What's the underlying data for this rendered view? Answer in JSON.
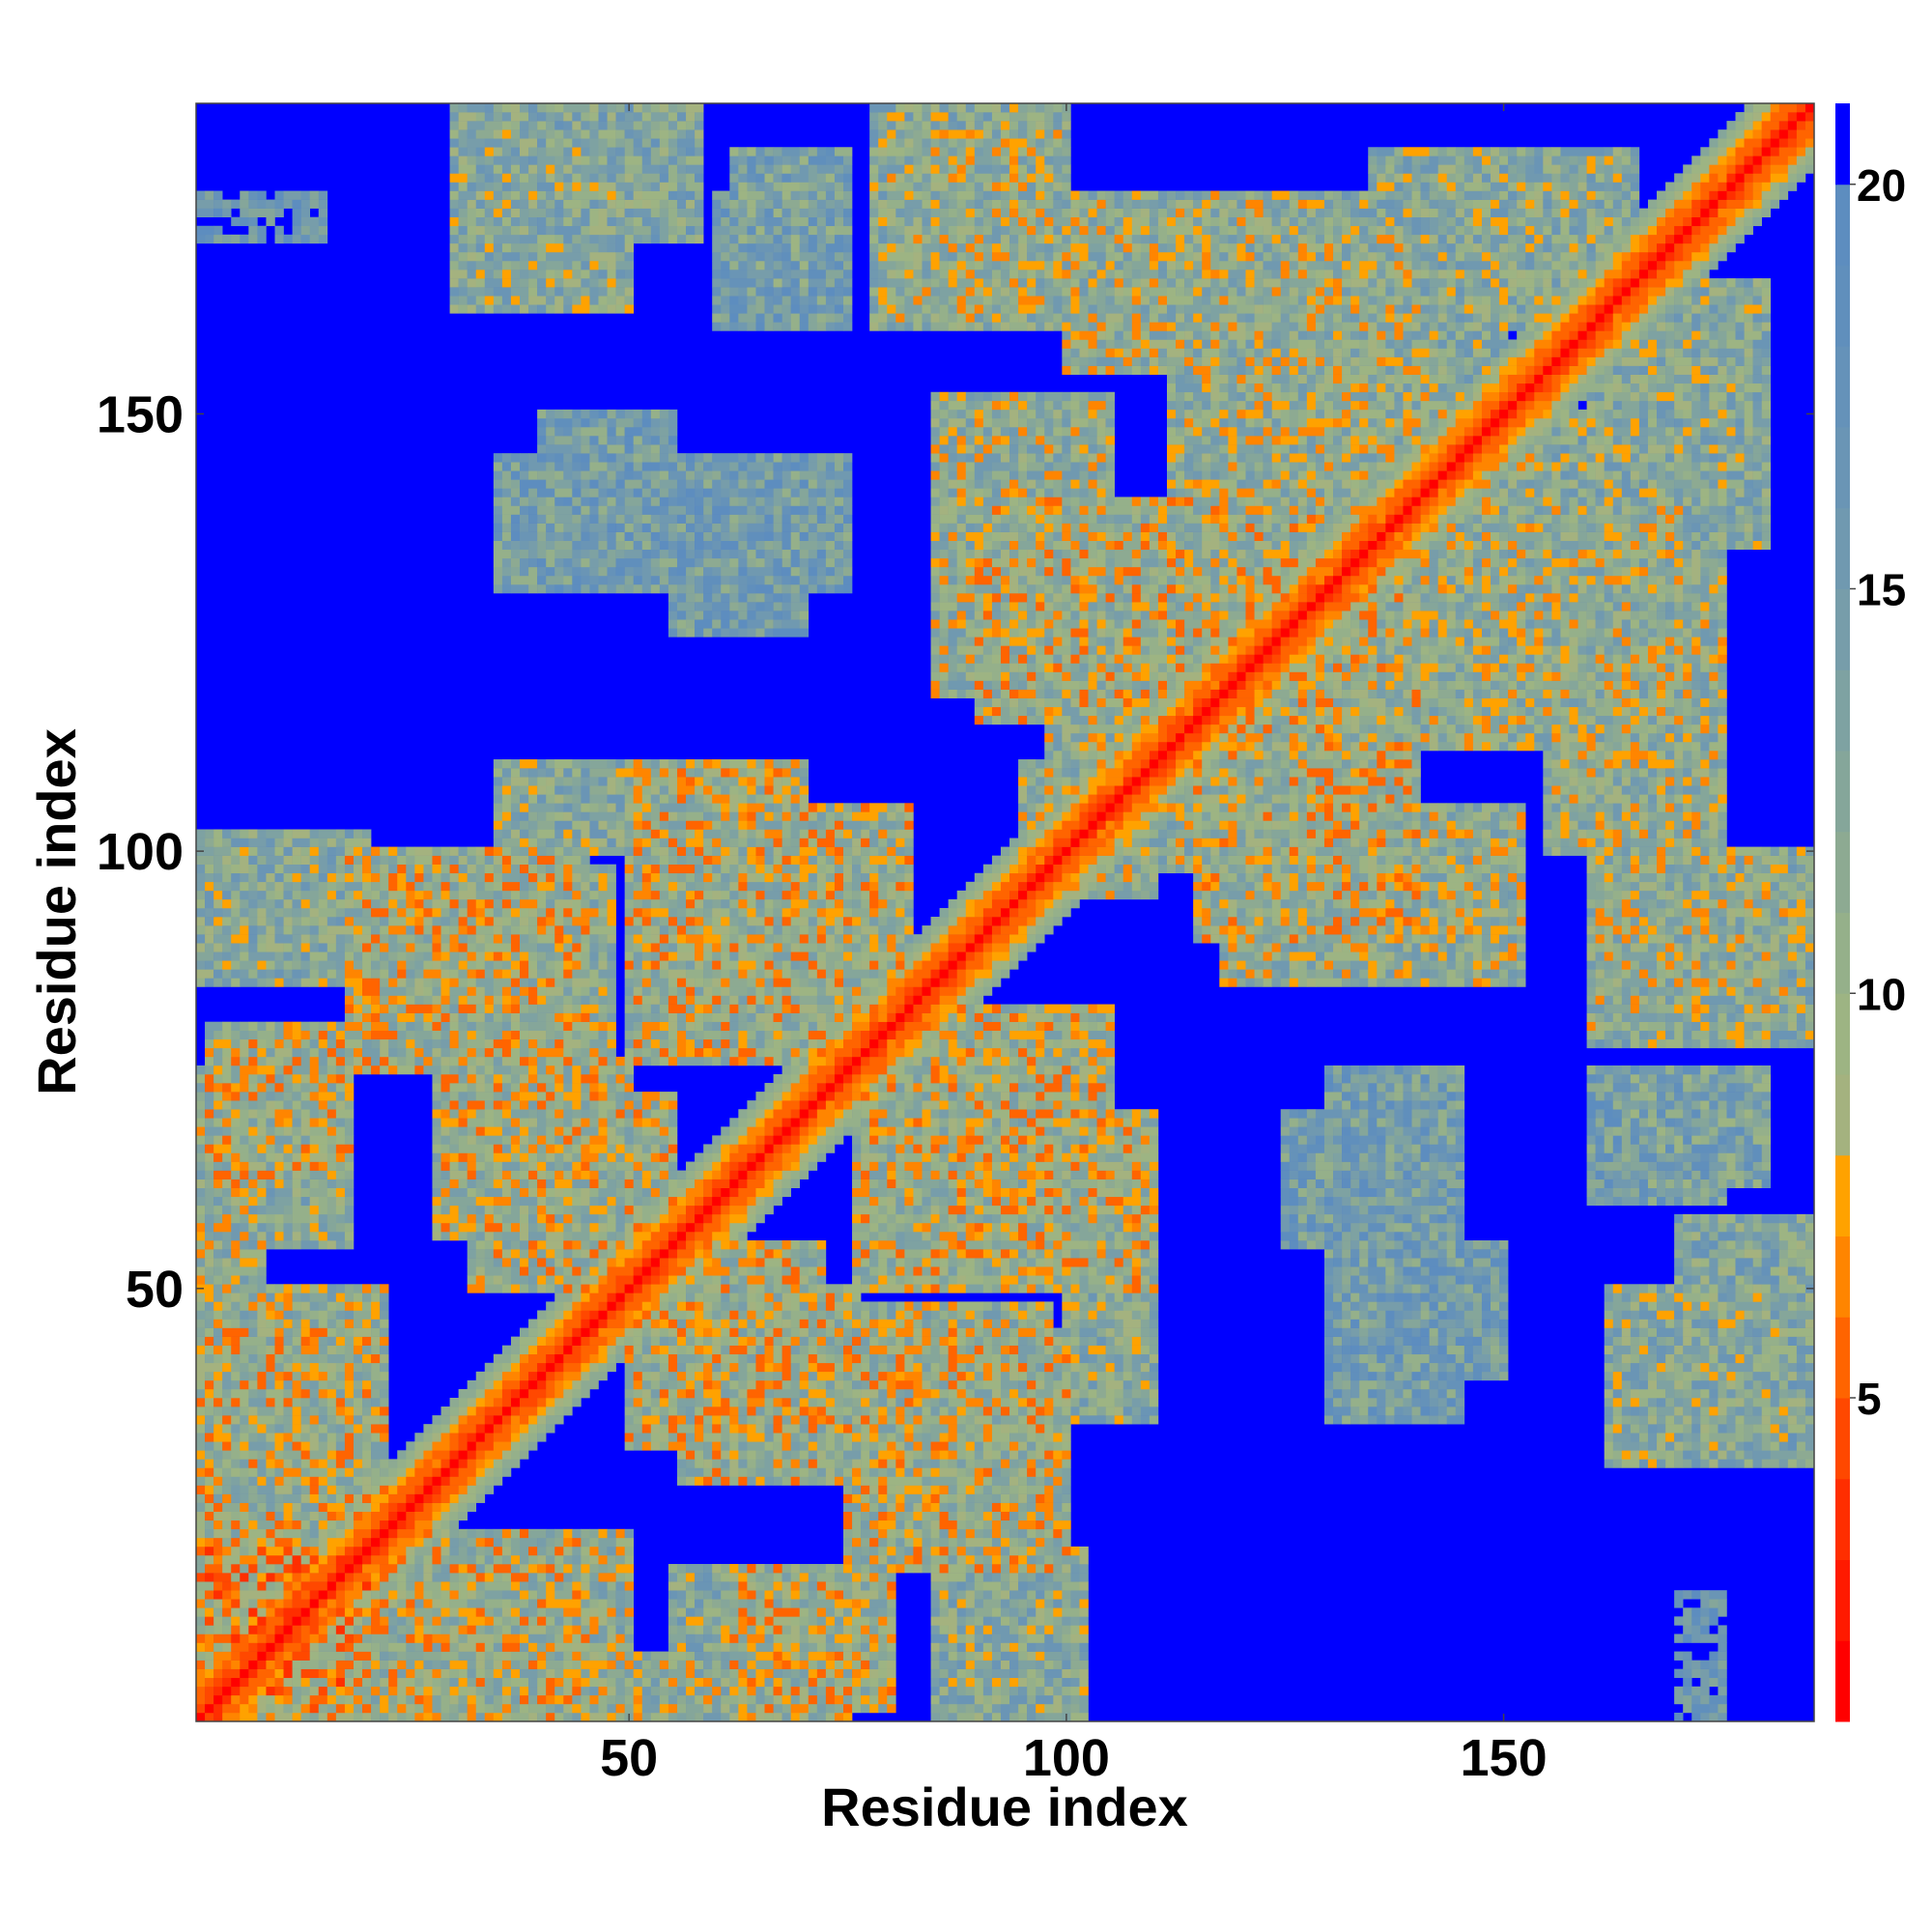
{
  "chart_data": {
    "type": "heatmap",
    "title": "",
    "xlabel": "Residue index",
    "ylabel": "Residue index",
    "n_residues": 185,
    "xlim": [
      1,
      185
    ],
    "ylim": [
      1,
      185
    ],
    "x_ticks": [
      50,
      100,
      150
    ],
    "y_ticks": [
      50,
      100,
      150
    ],
    "colorbar": {
      "range": [
        1,
        21
      ],
      "ticks": [
        5,
        10,
        15,
        20
      ],
      "levels": [
        {
          "min": 0,
          "max": 1,
          "color": "#ff0000"
        },
        {
          "min": 1,
          "max": 2,
          "color": "#ff0000"
        },
        {
          "min": 2,
          "max": 3,
          "color": "#ff1a00"
        },
        {
          "min": 3,
          "max": 4,
          "color": "#ff2e00"
        },
        {
          "min": 4,
          "max": 5,
          "color": "#ff4800"
        },
        {
          "min": 5,
          "max": 6,
          "color": "#ff6400"
        },
        {
          "min": 6,
          "max": 7,
          "color": "#ff8500"
        },
        {
          "min": 7,
          "max": 8,
          "color": "#ffa200"
        },
        {
          "min": 8,
          "max": 9,
          "color": "#a4b27f"
        },
        {
          "min": 9,
          "max": 10,
          "color": "#9db483"
        },
        {
          "min": 10,
          "max": 11,
          "color": "#95b08a"
        },
        {
          "min": 11,
          "max": 12,
          "color": "#8daa92"
        },
        {
          "min": 12,
          "max": 13,
          "color": "#85a69a"
        },
        {
          "min": 13,
          "max": 14,
          "color": "#7ea2a2"
        },
        {
          "min": 14,
          "max": 15,
          "color": "#779daa"
        },
        {
          "min": 15,
          "max": 16,
          "color": "#7099b0"
        },
        {
          "min": 16,
          "max": 17,
          "color": "#6a95b5"
        },
        {
          "min": 17,
          "max": 18,
          "color": "#6592b9"
        },
        {
          "min": 18,
          "max": 19,
          "color": "#608fbc"
        },
        {
          "min": 19,
          "max": 20,
          "color": "#5d8dbf"
        },
        {
          "min": 20,
          "max": 99,
          "color": "#0000ff"
        }
      ]
    },
    "structure": {
      "diagonal_band_width": 7,
      "contact_regions": [
        {
          "x": [
            1,
            20
          ],
          "y": [
            1,
            20
          ],
          "d": 8
        },
        {
          "x": [
            1,
            22
          ],
          "y": [
            30,
            50
          ],
          "d": 11
        },
        {
          "x": [
            1,
            18
          ],
          "y": [
            55,
            75
          ],
          "d": 12
        },
        {
          "x": [
            1,
            25
          ],
          "y": [
            85,
            100
          ],
          "d": 12
        },
        {
          "x": [
            20,
            45
          ],
          "y": [
            1,
            22
          ],
          "d": 10
        },
        {
          "x": [
            25,
            48
          ],
          "y": [
            76,
            98
          ],
          "d": 11
        },
        {
          "x": [
            28,
            50
          ],
          "y": [
            56,
            76
          ],
          "d": 10
        },
        {
          "x": [
            35,
            50
          ],
          "y": [
            100,
            110
          ],
          "d": 12
        },
        {
          "x": [
            30,
            58
          ],
          "y": [
            170,
            185
          ],
          "d": 13
        },
        {
          "x": [
            40,
            55
          ],
          "y": [
            130,
            150
          ],
          "d": 15
        },
        {
          "x": [
            48,
            75
          ],
          "y": [
            1,
            8
          ],
          "d": 11
        },
        {
          "x": [
            50,
            72
          ],
          "y": [
            32,
            55
          ],
          "d": 10
        },
        {
          "x": [
            50,
            70
          ],
          "y": [
            95,
            110
          ],
          "d": 10
        },
        {
          "x": [
            55,
            70
          ],
          "y": [
            125,
            145
          ],
          "d": 15
        },
        {
          "x": [
            62,
            80
          ],
          "y": [
            2,
            18
          ],
          "d": 10
        },
        {
          "x": [
            62,
            75
          ],
          "y": [
            165,
            180
          ],
          "d": 14
        },
        {
          "x": [
            75,
            100
          ],
          "y": [
            18,
            45
          ],
          "d": 10
        },
        {
          "x": [
            76,
            105
          ],
          "y": [
            50,
            82
          ],
          "d": 10
        },
        {
          "x": [
            78,
            100
          ],
          "y": [
            160,
            185
          ],
          "d": 12
        },
        {
          "x": [
            85,
            105
          ],
          "y": [
            118,
            152
          ],
          "d": 11
        },
        {
          "x": [
            88,
            102
          ],
          "y": [
            1,
            20
          ],
          "d": 12
        },
        {
          "x": [
            98,
            110
          ],
          "y": [
            95,
            125
          ],
          "d": 11
        },
        {
          "x": [
            115,
            140
          ],
          "y": [
            90,
            135
          ],
          "d": 10
        },
        {
          "x": [
            112,
            140
          ],
          "y": [
            140,
            170
          ],
          "d": 11
        },
        {
          "x": [
            130,
            155
          ],
          "y": [
            120,
            145
          ],
          "d": 11
        },
        {
          "x": [
            128,
            150
          ],
          "y": [
            150,
            175
          ],
          "d": 12
        },
        {
          "x": [
            130,
            145
          ],
          "y": [
            35,
            75
          ],
          "d": 15
        },
        {
          "x": [
            155,
            175
          ],
          "y": [
            100,
            130
          ],
          "d": 11
        },
        {
          "x": [
            160,
            182
          ],
          "y": [
            80,
            100
          ],
          "d": 11
        },
        {
          "x": [
            160,
            180
          ],
          "y": [
            135,
            165
          ],
          "d": 12
        },
        {
          "x": [
            162,
            182
          ],
          "y": [
            30,
            50
          ],
          "d": 12
        },
        {
          "x": [
            160,
            175
          ],
          "y": [
            60,
            75
          ],
          "d": 15
        },
        {
          "x": [
            170,
            175
          ],
          "y": [
            1,
            15
          ],
          "d": 17
        }
      ]
    }
  }
}
